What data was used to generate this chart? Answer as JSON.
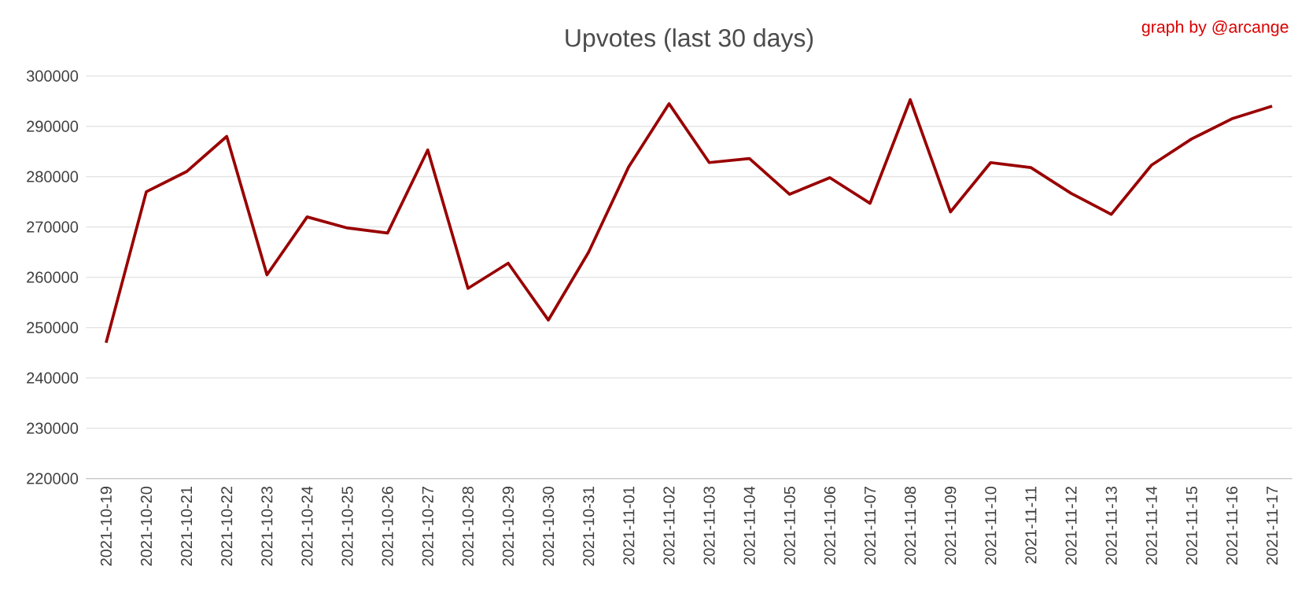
{
  "chart_data": {
    "type": "line",
    "title": "Upvotes (last 30 days)",
    "annotations": [
      "graph by @arcange"
    ],
    "categories": [
      "2021-10-19",
      "2021-10-20",
      "2021-10-21",
      "2021-10-22",
      "2021-10-23",
      "2021-10-24",
      "2021-10-25",
      "2021-10-26",
      "2021-10-27",
      "2021-10-28",
      "2021-10-29",
      "2021-10-30",
      "2021-10-31",
      "2021-11-01",
      "2021-11-02",
      "2021-11-03",
      "2021-11-04",
      "2021-11-05",
      "2021-11-06",
      "2021-11-07",
      "2021-11-08",
      "2021-11-09",
      "2021-11-10",
      "2021-11-11",
      "2021-11-12",
      "2021-11-13",
      "2021-11-14",
      "2021-11-15",
      "2021-11-16",
      "2021-11-17"
    ],
    "series": [
      {
        "color": "#990000",
        "values": [
          247000,
          277000,
          281000,
          288000,
          260500,
          272000,
          269800,
          268800,
          285300,
          257800,
          262800,
          251500,
          265000,
          282000,
          294500,
          282800,
          283600,
          276500,
          279800,
          274700,
          295300,
          273000,
          282800,
          281800,
          276700,
          272500,
          282300,
          287500,
          291500,
          294000
        ]
      }
    ],
    "ylim": [
      220000,
      300000
    ],
    "yticks": [
      220000,
      230000,
      240000,
      250000,
      260000,
      270000,
      280000,
      290000,
      300000
    ],
    "grid": "y"
  }
}
